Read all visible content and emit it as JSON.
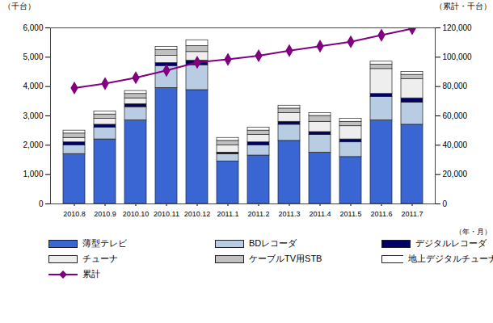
{
  "chart_data": {
    "type": "bar",
    "stacked": true,
    "categories": [
      "2010.8",
      "2010.9",
      "2010.10",
      "2010.11",
      "2010.12",
      "2011.1",
      "2011.2",
      "2011.3",
      "2011.4",
      "2011.5",
      "2011.6",
      "2011.7"
    ],
    "series": [
      {
        "name": "薄型テレビ",
        "color": "#3a66d4",
        "values": [
          1700,
          2200,
          2850,
          3950,
          3880,
          1450,
          1650,
          2150,
          1750,
          1600,
          2850,
          2700
        ]
      },
      {
        "name": "BDレコーダ",
        "color": "#b8cce4",
        "values": [
          300,
          400,
          450,
          750,
          850,
          250,
          350,
          550,
          600,
          500,
          800,
          750
        ]
      },
      {
        "name": "デジタルレコーダ",
        "color": "#000066",
        "values": [
          100,
          100,
          100,
          100,
          150,
          50,
          100,
          100,
          100,
          100,
          100,
          150
        ]
      },
      {
        "name": "チューナ",
        "color": "#eeeeee",
        "values": [
          150,
          200,
          200,
          250,
          300,
          250,
          250,
          300,
          350,
          450,
          850,
          650
        ]
      },
      {
        "name": "ケーブルTV用STB",
        "color": "#c0c0c0",
        "values": [
          150,
          150,
          150,
          200,
          200,
          150,
          150,
          150,
          200,
          150,
          150,
          150
        ]
      },
      {
        "name": "地上デジタルチューナ内蔵PC",
        "color": "#ffffff",
        "values": [
          100,
          100,
          100,
          100,
          200,
          100,
          100,
          100,
          100,
          100,
          100,
          100
        ]
      },
      {
        "name": "累計",
        "color": "#800080",
        "type": "line",
        "axis": "y2",
        "marker": "diamond",
        "values": [
          79000,
          82000,
          86000,
          91000,
          96500,
          98500,
          101000,
          104500,
          107500,
          110500,
          115000,
          119500
        ]
      }
    ],
    "ylim": [
      0,
      6000
    ],
    "yticks": [
      0,
      {
        "value": 1000,
        "label": "1,000"
      },
      {
        "value": 2000,
        "label": "2,000"
      },
      {
        "value": 3000,
        "label": "3,000"
      },
      {
        "value": 4000,
        "label": "4,000"
      },
      {
        "value": 5000,
        "label": "5,000"
      },
      {
        "value": 6000,
        "label": "6,000"
      }
    ],
    "y2lim": [
      0,
      120000
    ],
    "y2ticks": [
      0,
      {
        "value": 20000,
        "label": "20,000"
      },
      {
        "value": 40000,
        "label": "40,000"
      },
      {
        "value": 60000,
        "label": "60,000"
      },
      {
        "value": 80000,
        "label": "80,000"
      },
      {
        "value": 100000,
        "label": "100,000"
      },
      {
        "value": 120000,
        "label": "120,000"
      }
    ],
    "ylabel": "（千台）",
    "y2label": "（累計・千台）",
    "xlabel": "（年・月）",
    "grid": false,
    "legend": "bottom"
  }
}
